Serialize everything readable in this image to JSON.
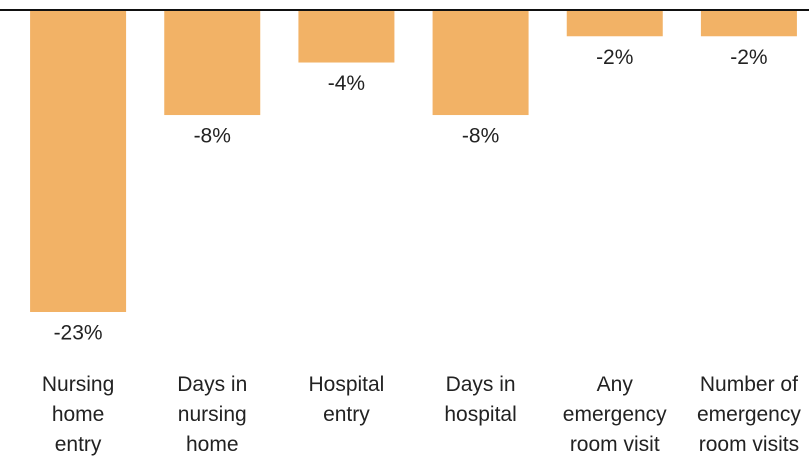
{
  "chart_data": {
    "type": "bar",
    "categories": [
      "Nursing\nhome\nentry",
      "Days in\nnursing\nhome",
      "Hospital\nentry",
      "Days in\nhospital",
      "Any\nemergency\nroom visit",
      "Number of\nemergency\nroom visits"
    ],
    "values": [
      -23,
      -8,
      -4,
      -8,
      -2,
      -2
    ],
    "value_labels": [
      "-23%",
      "-8%",
      "-4%",
      "-8%",
      "-2%",
      "-2%"
    ],
    "color": "#f2b266",
    "ylim": [
      -23,
      0
    ]
  }
}
